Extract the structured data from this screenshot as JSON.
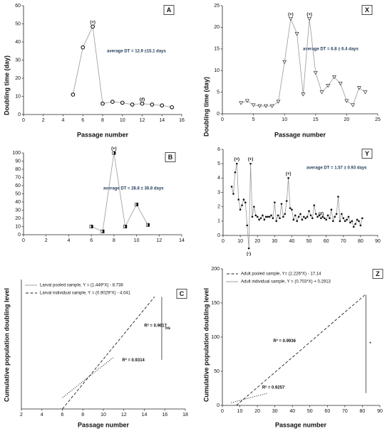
{
  "chart_data": [
    {
      "type": "line",
      "panel": "A",
      "ylabel": "Doubling time (day)",
      "xlabel": "Passage number",
      "x": [
        5,
        6,
        7,
        8,
        9,
        10,
        11,
        12,
        13,
        14,
        15
      ],
      "values": [
        11,
        37,
        48.5,
        6,
        7,
        6.5,
        5.5,
        6,
        5.5,
        5,
        4
      ],
      "marker": "circle",
      "color": "#999999",
      "xlim": [
        0,
        16
      ],
      "xticks": [
        0,
        2,
        4,
        6,
        8,
        10,
        12,
        14,
        16
      ],
      "ylim": [
        0,
        60
      ],
      "yticks": [
        0,
        10,
        20,
        30,
        40,
        50,
        60
      ],
      "annotations": [
        {
          "index": 2,
          "text": "(+)"
        },
        {
          "index": 7,
          "text": "(#)"
        }
      ],
      "note": "average DT = 12.9 ±15.1 days"
    },
    {
      "type": "line",
      "panel": "X",
      "ylabel": "Doubling time (day)",
      "xlabel": "Passage number",
      "x": [
        3,
        4,
        5,
        6,
        7,
        8,
        9,
        10,
        11,
        12,
        13,
        14,
        15,
        16,
        17,
        18,
        19,
        20,
        21,
        22,
        23
      ],
      "values": [
        2.5,
        3,
        2,
        1.8,
        1.8,
        1.8,
        2.8,
        12,
        22,
        18.5,
        4.5,
        22,
        9.5,
        5,
        6.5,
        8.5,
        7,
        3,
        2,
        6,
        5
      ],
      "marker": "triangle",
      "color": "#999999",
      "xlim": [
        0,
        25
      ],
      "xticks": [
        0,
        5,
        10,
        15,
        20,
        25
      ],
      "ylim": [
        0,
        25
      ],
      "yticks": [
        0,
        5,
        10,
        15,
        20,
        25
      ],
      "annotations": [
        {
          "index": 8,
          "text": "(+)"
        },
        {
          "index": 11,
          "text": "(+)"
        }
      ],
      "note": "average DT = 6.8 ± 6.4 days"
    },
    {
      "type": "line",
      "panel": "B",
      "x": [
        6,
        7,
        8,
        9,
        10,
        11
      ],
      "values": [
        10,
        4,
        100,
        10,
        37,
        12
      ],
      "marker": "square",
      "color": "#999999",
      "xlim": [
        0,
        14
      ],
      "xticks": [
        0,
        2,
        4,
        6,
        8,
        10,
        12,
        14
      ],
      "ylim": [
        0,
        100
      ],
      "yticks": [
        0,
        10,
        20,
        30,
        40,
        50,
        60,
        70,
        80,
        90,
        100
      ],
      "annotations": [
        {
          "index": 2,
          "text": "(+)"
        }
      ],
      "note": "average DT = 28.8 ± 36.8 days"
    },
    {
      "type": "line",
      "panel": "Y",
      "x": [
        5,
        6,
        7,
        8,
        9,
        10,
        11,
        12,
        13,
        14,
        15,
        16,
        17,
        18,
        19,
        20,
        21,
        22,
        23,
        24,
        25,
        26,
        27,
        28,
        29,
        30,
        31,
        32,
        33,
        34,
        35,
        36,
        37,
        38,
        39,
        40,
        41,
        42,
        43,
        44,
        45,
        46,
        47,
        48,
        49,
        50,
        51,
        52,
        53,
        54,
        55,
        56,
        57,
        58,
        59,
        60,
        61,
        62,
        63,
        64,
        65,
        66,
        67,
        68,
        69,
        70,
        71,
        72,
        73,
        74,
        75,
        76,
        77,
        78,
        79,
        80,
        81
      ],
      "values": [
        3.4,
        2.9,
        4.4,
        5,
        2.5,
        1.8,
        2.1,
        2.5,
        2.3,
        0.7,
        -0.9,
        5,
        1.3,
        2,
        1.4,
        1.3,
        1.1,
        1.2,
        1.4,
        1.1,
        1.3,
        1.3,
        1.3,
        1.4,
        1.2,
        2.3,
        1,
        1.4,
        1.2,
        2.2,
        1.3,
        1.5,
        2.4,
        4,
        1.9,
        1.8,
        1.1,
        1.4,
        1,
        1.3,
        1.5,
        1.1,
        1.3,
        1.2,
        1.3,
        1.7,
        1.4,
        1.2,
        2.1,
        1.5,
        1.3,
        1.4,
        1.2,
        1.3,
        1.2,
        1.1,
        1.4,
        1.2,
        1.8,
        1,
        1.3,
        1.5,
        2.7,
        1,
        1.5,
        1.2,
        1,
        1.1,
        1.3,
        0.9,
        1,
        0.6,
        0.8,
        1.1,
        1,
        0.7,
        1.2
      ],
      "marker": "dot",
      "color": "#999999",
      "xlim": [
        0,
        90
      ],
      "xticks": [
        0,
        10,
        20,
        30,
        40,
        50,
        60,
        70,
        80,
        90
      ],
      "ylim": [
        0,
        6
      ],
      "yticks": [
        0,
        1,
        2,
        3,
        4,
        5,
        6
      ],
      "annotations": [
        {
          "index": 3,
          "text": "(+)"
        },
        {
          "index": 11,
          "text": "(+)"
        },
        {
          "index": 33,
          "text": "(+)"
        },
        {
          "index": 52,
          "text": "(#)"
        },
        {
          "index": 10,
          "text": "(-)"
        }
      ],
      "note": "average DT = 1.57 ± 0.93 days"
    },
    {
      "type": "regression",
      "panel": "C",
      "ylabel": "Cumulative population doubling level",
      "xlabel": "Passage number",
      "xlim": [
        2,
        18
      ],
      "xticks": [
        2,
        4,
        6,
        8,
        10,
        12,
        14,
        16,
        18
      ],
      "ylim": [
        0,
        15
      ],
      "series": [
        {
          "name": "Larval pooled sample, Y = (1.449*X) - 8.738",
          "style": "dotted",
          "color": "#222222",
          "x": [
            6,
            11
          ],
          "values": [
            1.3,
            6
          ],
          "r2": "R² = 0.9314"
        },
        {
          "name": "Larval individual sample, Y = (0.9029*X) - 4.041",
          "style": "dashed",
          "color": "#222222",
          "x": [
            6,
            15
          ],
          "values": [
            0,
            13
          ],
          "r2": "R² = 0.9617"
        }
      ],
      "bracket": {
        "label": "ns",
        "x": 15.7,
        "range": [
          5.7,
          13
        ]
      }
    },
    {
      "type": "regression",
      "panel": "Z",
      "ylabel": "Cumulative population doubling level",
      "xlabel": "Passage number",
      "xlim": [
        0,
        90
      ],
      "xticks": [
        0,
        10,
        20,
        30,
        40,
        50,
        60,
        70,
        80,
        90
      ],
      "ylim": [
        0,
        200
      ],
      "yticks": [
        0,
        50,
        100,
        150,
        200
      ],
      "series": [
        {
          "name": "Adult pooled sample, Y= (2.226*X) - 17.14",
          "style": "dashed",
          "color": "#222222",
          "x": [
            8,
            82
          ],
          "values": [
            0,
            163
          ],
          "r2": "R² = 0.9936"
        },
        {
          "name": "Adult individual sample, Y = (0.703*X) + 0.2913",
          "style": "dotted",
          "color": "#222222",
          "x": [
            5,
            26
          ],
          "values": [
            4,
            18
          ],
          "r2": "R² = 0.9257"
        }
      ],
      "bracket": {
        "label": "*",
        "x": 82,
        "range": [
          18,
          162
        ]
      }
    }
  ]
}
